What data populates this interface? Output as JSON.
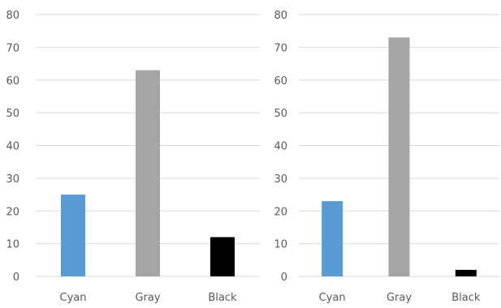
{
  "chart_data": [
    {
      "type": "bar",
      "categories": [
        "Cyan",
        "Gray",
        "Black"
      ],
      "values": [
        25,
        63,
        12
      ],
      "colors": [
        "#5b9bd5",
        "#a5a5a5",
        "#000000"
      ],
      "ylim": [
        0,
        80
      ],
      "yticks": [
        0,
        10,
        20,
        30,
        40,
        50,
        60,
        70,
        80
      ],
      "grid": true,
      "legend": "none"
    },
    {
      "type": "bar",
      "categories": [
        "Cyan",
        "Gray",
        "Black"
      ],
      "values": [
        23,
        73,
        2
      ],
      "colors": [
        "#5b9bd5",
        "#a5a5a5",
        "#000000"
      ],
      "ylim": [
        0,
        80
      ],
      "yticks": [
        0,
        10,
        20,
        30,
        40,
        50,
        60,
        70,
        80
      ],
      "grid": true,
      "legend": "none"
    }
  ]
}
